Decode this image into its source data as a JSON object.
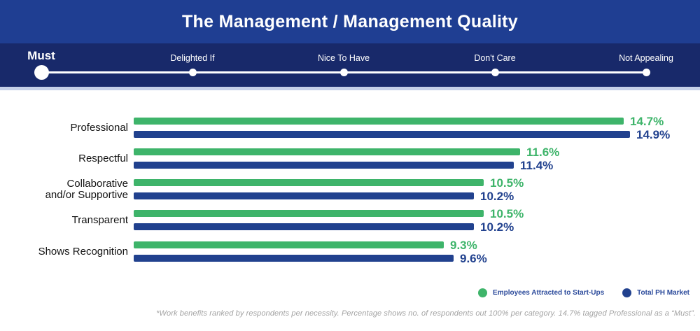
{
  "title": "The Management / Management Quality",
  "scale": {
    "selected_index": 0,
    "selected_label": "Must",
    "options": [
      {
        "label": "Must"
      },
      {
        "label": "Delighted If"
      },
      {
        "label": "Nice To Have"
      },
      {
        "label": "Don't Care"
      },
      {
        "label": "Not Appealing"
      }
    ]
  },
  "chart_data": {
    "type": "bar",
    "orientation": "horizontal",
    "title": "The Management / Management Quality",
    "categories": [
      "Professional",
      "Respectful",
      "Collaborative and/or Supportive",
      "Transparent",
      "Shows Recognition"
    ],
    "category_display_lines": [
      [
        "Professional"
      ],
      [
        "Respectful"
      ],
      [
        "Collaborative",
        "and/or Supportive"
      ],
      [
        "Transparent"
      ],
      [
        "Shows Recognition"
      ]
    ],
    "series": [
      {
        "name": "Employees Attracted to Start-Ups",
        "color": "#3eb46a",
        "values": [
          14.7,
          11.6,
          10.5,
          10.5,
          9.3
        ]
      },
      {
        "name": "Total PH Market",
        "color": "#21418e",
        "values": [
          14.9,
          11.4,
          10.2,
          10.2,
          9.6
        ]
      }
    ],
    "value_suffix": "%",
    "xlim": [
      0,
      15.5
    ],
    "grid": false,
    "legend_position": "bottom-right"
  },
  "legend": {
    "items": [
      {
        "label": "Employees Attracted to Start-Ups",
        "color": "#3eb46a"
      },
      {
        "label": "Total PH Market",
        "color": "#21418e"
      }
    ]
  },
  "footnote": "*Work benefits ranked by respondents per necessity. Percentage shows no. of respondents out 100% per category. 14.7% tagged Professional as a “Must”.",
  "colors": {
    "banner_blue": "#1f3e92",
    "scale_band_navy": "#18296a",
    "scale_band_edge": "#c5d0e8",
    "startups_green": "#3eb46a",
    "market_blue": "#21418e",
    "legend_text_blue": "#2b4a9b",
    "footnote_gray": "#a3a3a3"
  }
}
